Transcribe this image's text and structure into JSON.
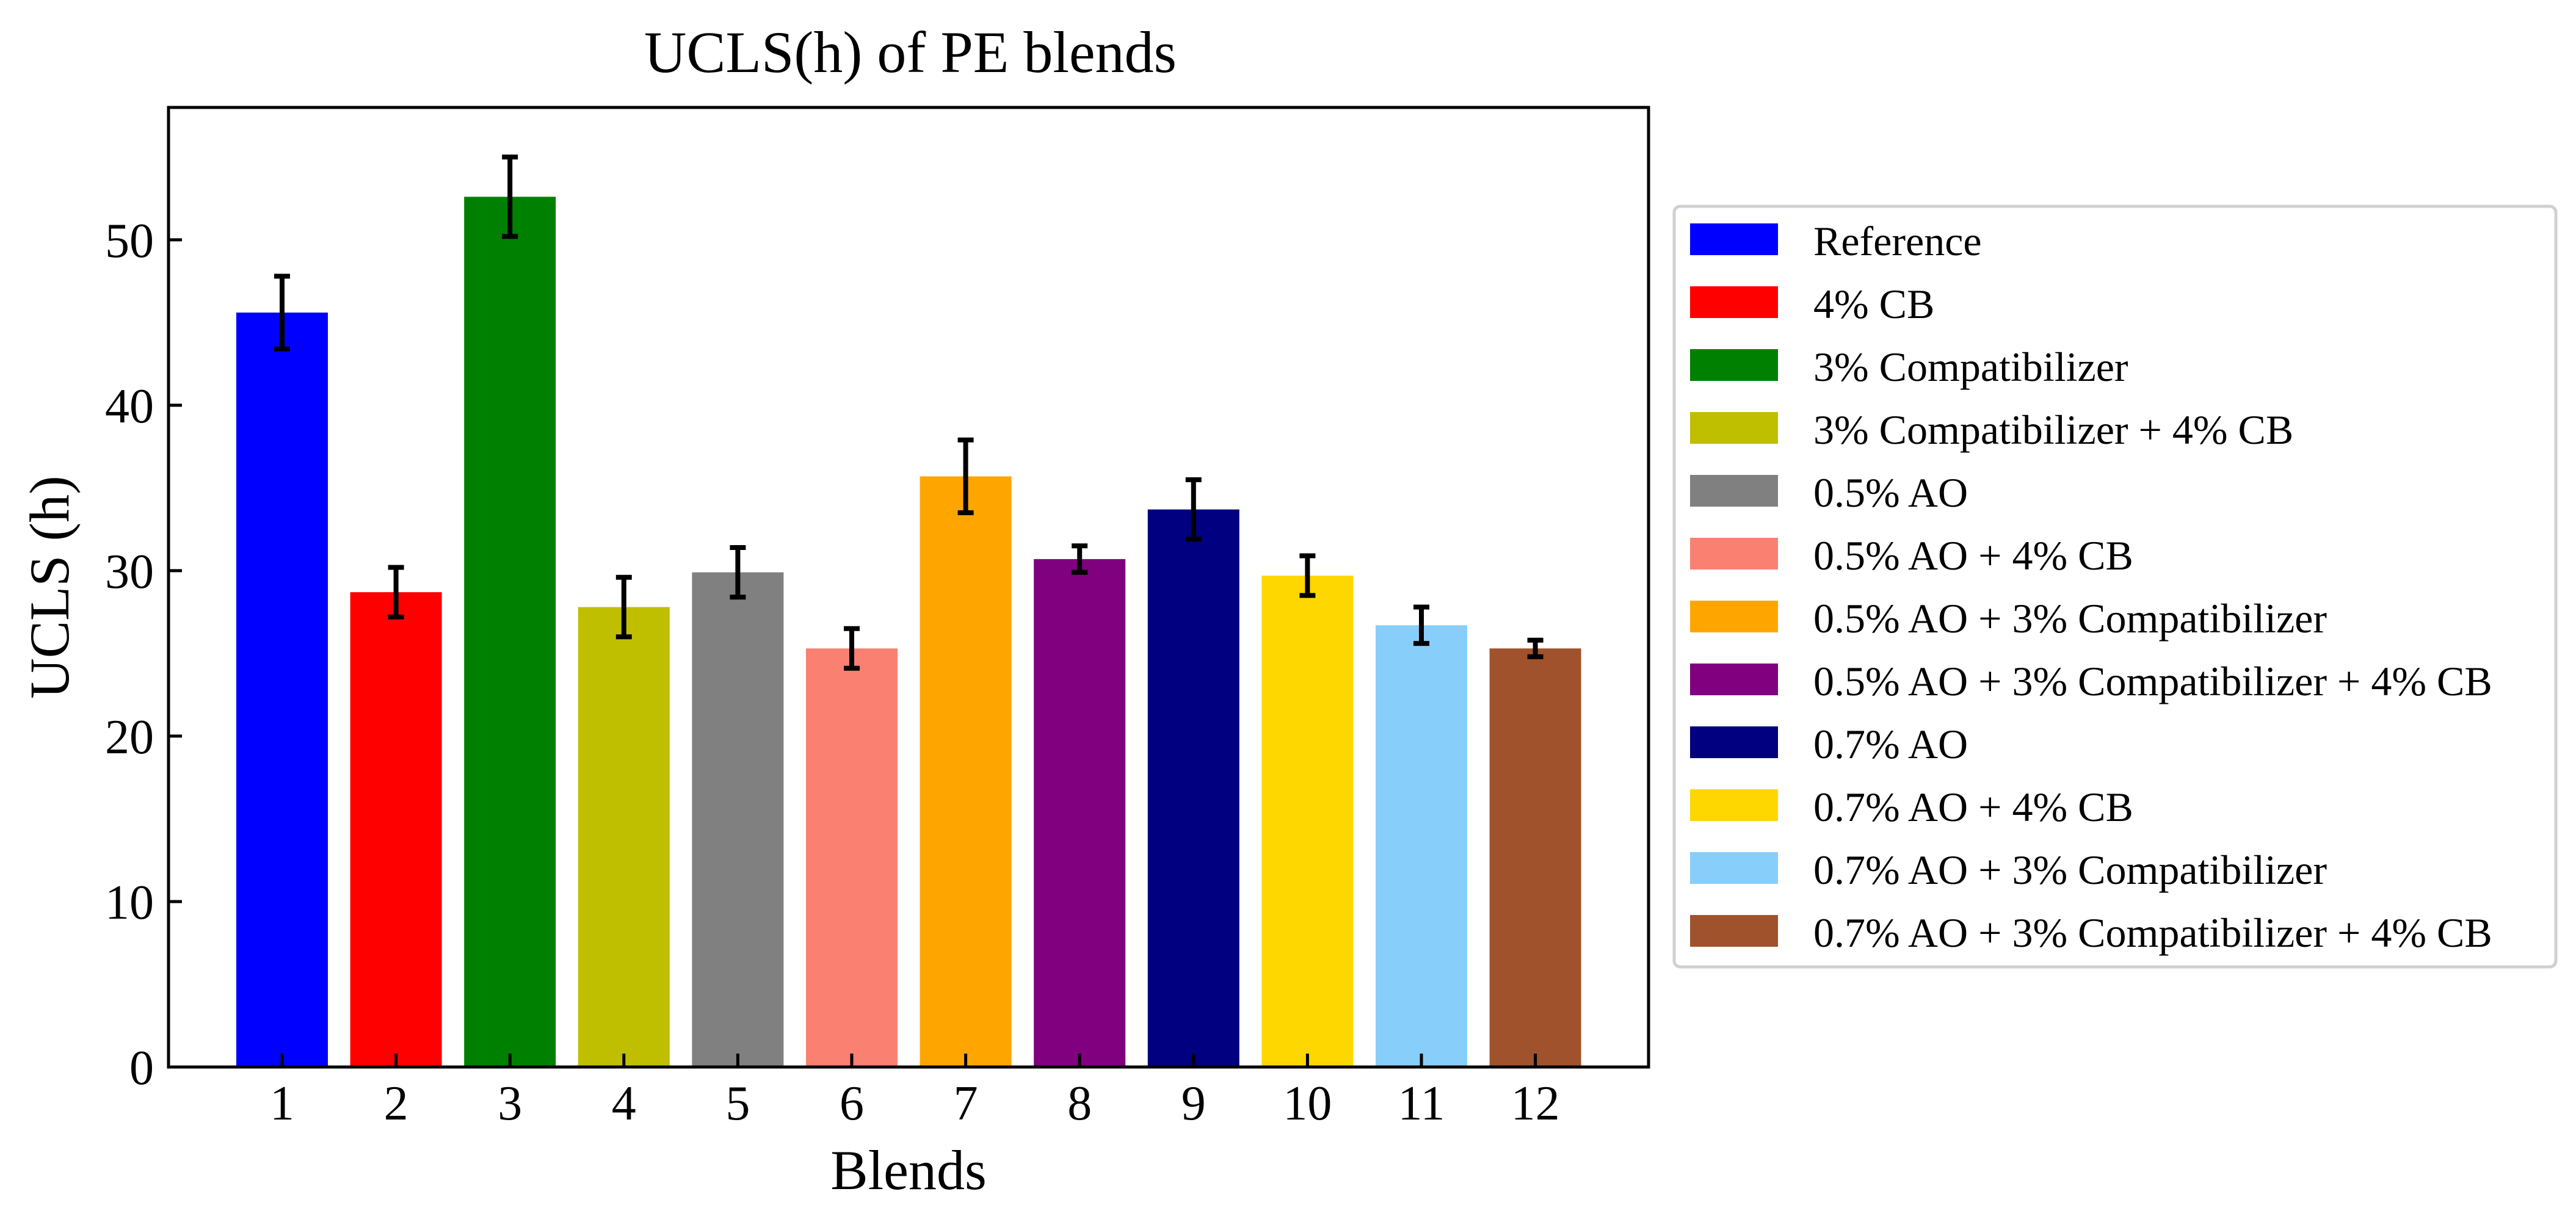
{
  "chart_data": {
    "type": "bar",
    "title": "UCLS(h) of PE blends",
    "xlabel": "Blends",
    "ylabel": "UCLS (h)",
    "ylim": [
      0,
      58
    ],
    "yticks": [
      0,
      10,
      20,
      30,
      40,
      50
    ],
    "categories": [
      "1",
      "2",
      "3",
      "4",
      "5",
      "6",
      "7",
      "8",
      "9",
      "10",
      "11",
      "12"
    ],
    "values": [
      45.6,
      28.7,
      52.6,
      27.8,
      29.9,
      25.3,
      35.7,
      30.7,
      33.7,
      29.7,
      26.7,
      25.3
    ],
    "errors": [
      2.2,
      1.5,
      2.4,
      1.8,
      1.5,
      1.2,
      2.2,
      0.8,
      1.8,
      1.2,
      1.1,
      0.5
    ],
    "colors": [
      "#0000ff",
      "#ff0000",
      "#008000",
      "#bfbf00",
      "#808080",
      "#fa8072",
      "#ffa500",
      "#800080",
      "#000080",
      "#ffd700",
      "#87cefa",
      "#a0522d"
    ],
    "legend": [
      "Reference",
      "4% CB",
      "3% Compatibilizer",
      "3% Compatibilizer + 4% CB",
      "0.5% AO",
      "0.5% AO + 4% CB",
      "0.5% AO + 3% Compatibilizer",
      "0.5% AO + 3% Compatibilizer + 4% CB",
      "0.7% AO",
      "0.7% AO + 4% CB",
      "0.7% AO + 3% Compatibilizer",
      "0.7% AO + 3% Compatibilizer + 4% CB"
    ],
    "legend_position": "right",
    "grid": false
  }
}
